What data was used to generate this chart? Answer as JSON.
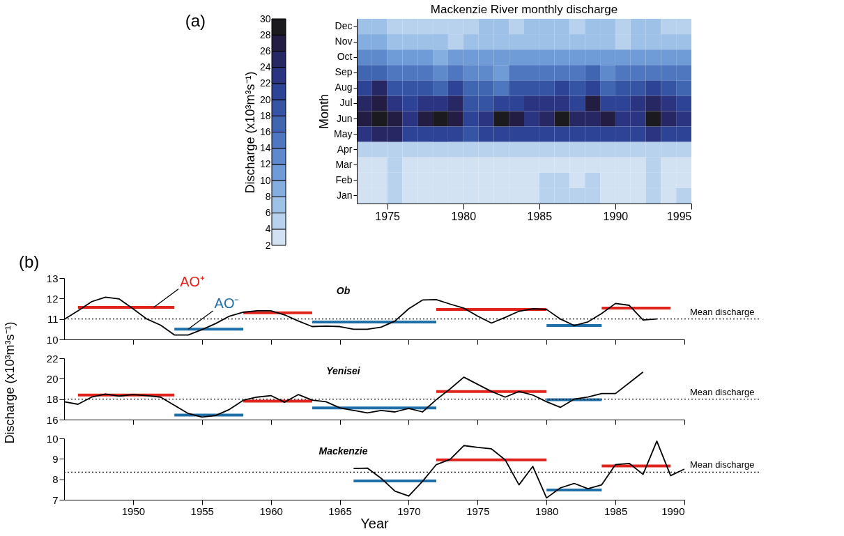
{
  "chart_data": [
    {
      "type": "heatmap",
      "title": "Mackenzie River monthly discharge",
      "ylabel": "Month",
      "clabel": "Discharge (x10³m³s⁻¹)",
      "annotations": [
        "(a)"
      ],
      "x": [
        1973.5,
        1974.5,
        1975.5,
        1976.5,
        1977.5,
        1978.5,
        1979.5,
        1980.5,
        1981.5,
        1982.5,
        1983.5,
        1984.5,
        1985.5,
        1986.5,
        1987.5,
        1988.5,
        1989.5,
        1990.5,
        1991.5,
        1992.5,
        1993.5,
        1994.5
      ],
      "xlim": [
        1973,
        1995
      ],
      "xticks": [
        1975,
        1980,
        1985,
        1990,
        1995
      ],
      "y_categories": [
        "Dec",
        "Nov",
        "Oct",
        "Sep",
        "Aug",
        "Jul",
        "Jun",
        "May",
        "Apr",
        "Mar",
        "Feb",
        "Jan"
      ],
      "cells": [
        [
          7,
          7,
          5,
          5,
          5,
          5,
          5,
          5,
          7,
          7,
          5,
          7,
          7,
          7,
          5,
          7,
          7,
          5,
          7,
          7,
          5,
          5
        ],
        [
          9,
          9,
          7,
          7,
          7,
          7,
          5,
          7,
          7,
          7,
          7,
          7,
          7,
          7,
          7,
          7,
          7,
          5,
          7,
          7,
          7,
          7
        ],
        [
          13,
          13,
          11,
          11,
          11,
          9,
          11,
          11,
          11,
          11,
          11,
          11,
          11,
          11,
          11,
          11,
          11,
          11,
          11,
          11,
          11,
          11
        ],
        [
          17,
          17,
          15,
          15,
          15,
          13,
          15,
          13,
          13,
          11,
          15,
          15,
          15,
          15,
          15,
          17,
          13,
          15,
          15,
          15,
          15,
          15
        ],
        [
          21,
          25,
          19,
          19,
          19,
          17,
          21,
          17,
          17,
          15,
          19,
          19,
          19,
          21,
          19,
          21,
          17,
          19,
          19,
          21,
          19,
          17
        ],
        [
          25,
          27,
          23,
          21,
          23,
          23,
          25,
          19,
          19,
          21,
          21,
          23,
          23,
          23,
          21,
          27,
          21,
          21,
          23,
          25,
          23,
          21
        ],
        [
          27,
          29,
          27,
          23,
          27,
          29,
          27,
          21,
          23,
          29,
          27,
          23,
          25,
          29,
          25,
          25,
          27,
          23,
          23,
          29,
          25,
          23
        ],
        [
          23,
          25,
          25,
          21,
          21,
          21,
          21,
          19,
          21,
          21,
          21,
          21,
          21,
          21,
          21,
          21,
          21,
          21,
          21,
          23,
          21,
          21
        ],
        [
          5,
          5,
          5,
          5,
          5,
          5,
          5,
          5,
          5,
          5,
          5,
          5,
          5,
          5,
          5,
          5,
          5,
          5,
          5,
          5,
          5,
          5
        ],
        [
          3,
          3,
          5,
          3,
          3,
          3,
          3,
          3,
          3,
          3,
          3,
          3,
          3,
          3,
          3,
          3,
          3,
          3,
          3,
          5,
          3,
          3
        ],
        [
          3,
          3,
          5,
          3,
          3,
          3,
          3,
          3,
          3,
          3,
          3,
          3,
          5,
          5,
          3,
          5,
          3,
          3,
          3,
          5,
          3,
          3
        ],
        [
          3,
          3,
          5,
          3,
          3,
          3,
          3,
          3,
          3,
          3,
          3,
          3,
          5,
          5,
          5,
          5,
          3,
          3,
          3,
          5,
          3,
          5
        ]
      ],
      "clim": [
        2,
        30
      ],
      "cticks": [
        2,
        4,
        6,
        8,
        10,
        12,
        14,
        16,
        18,
        20,
        22,
        24,
        26,
        28,
        30
      ],
      "colors": [
        "#d3e2f2",
        "#b8d2ee",
        "#9dc1e7",
        "#84aee0",
        "#6f9bd6",
        "#5e89cb",
        "#4e77bf",
        "#4066b2",
        "#3554a4",
        "#2c4396",
        "#2a3480",
        "#272764",
        "#231d43",
        "#1a1a1f"
      ]
    },
    {
      "type": "line",
      "annotations": [
        "(b)",
        "Ob",
        {
          "text": "AO⁺",
          "x": 1951.5,
          "y": 11.57
        },
        {
          "text": "AO⁻",
          "x": 1954,
          "y": 10.5
        }
      ],
      "xlim": [
        1945,
        1990
      ],
      "xticks": [
        1950,
        1955,
        1960,
        1965,
        1970,
        1975,
        1980,
        1985,
        1990
      ],
      "ylim": [
        10,
        13
      ],
      "yticks": [
        10,
        11,
        12,
        13
      ],
      "tick_labels": "y",
      "grid": false,
      "legend": false,
      "ref_lines": [
        {
          "axis": "y",
          "value": 11.0,
          "label": "Mean discharge",
          "line_style": "dotted",
          "color": "#000000"
        }
      ],
      "series": [
        {
          "x": [
            1946,
            1953
          ],
          "values": [
            11.57,
            11.57
          ],
          "color": "#e0241c"
        },
        {
          "x": [
            1953,
            1958
          ],
          "values": [
            10.5,
            10.5
          ],
          "color": "#1f6fa8"
        },
        {
          "x": [
            1958,
            1963
          ],
          "values": [
            11.3,
            11.3
          ],
          "color": "#e0241c"
        },
        {
          "x": [
            1963,
            1972
          ],
          "values": [
            10.85,
            10.85
          ],
          "color": "#1f6fa8"
        },
        {
          "x": [
            1972,
            1980
          ],
          "values": [
            11.47,
            11.47
          ],
          "color": "#e0241c"
        },
        {
          "x": [
            1980,
            1984
          ],
          "values": [
            10.68,
            10.68
          ],
          "color": "#1f6fa8"
        },
        {
          "x": [
            1984,
            1989
          ],
          "values": [
            11.53,
            11.53
          ],
          "color": "#e0241c"
        },
        {
          "x": [
            1945,
            1946,
            1947,
            1948,
            1949,
            1950,
            1951,
            1952,
            1953,
            1954,
            1955,
            1956,
            1957,
            1958,
            1959,
            1960,
            1961,
            1962,
            1963,
            1964,
            1965,
            1966,
            1967,
            1968,
            1969,
            1970,
            1971,
            1972,
            1973,
            1974,
            1975,
            1976,
            1977,
            1978,
            1979,
            1980,
            1981,
            1982,
            1983,
            1984,
            1985,
            1986,
            1987,
            1988
          ],
          "values": [
            10.98,
            11.4,
            11.85,
            12.07,
            11.98,
            11.5,
            11.0,
            10.7,
            10.22,
            10.22,
            10.48,
            10.78,
            11.14,
            11.33,
            11.4,
            11.4,
            11.2,
            10.9,
            10.63,
            10.65,
            10.63,
            10.5,
            10.5,
            10.6,
            10.9,
            11.5,
            11.93,
            11.95,
            11.73,
            11.53,
            11.14,
            10.8,
            11.08,
            11.38,
            11.5,
            11.47,
            11.0,
            10.68,
            10.86,
            11.27,
            11.76,
            11.67,
            10.95,
            11.0
          ],
          "color": "#000000"
        }
      ]
    },
    {
      "type": "line",
      "ylabel": "Discharge (x10³m³s⁻¹)",
      "annotations": [
        "Yenisei"
      ],
      "xlim": [
        1945,
        1990
      ],
      "xticks": [
        1950,
        1955,
        1960,
        1965,
        1970,
        1975,
        1980,
        1985,
        1990
      ],
      "ylim": [
        16,
        22
      ],
      "yticks": [
        16,
        18,
        20,
        22
      ],
      "tick_labels": "y",
      "grid": false,
      "legend": false,
      "ref_lines": [
        {
          "axis": "y",
          "value": 18.0,
          "label": "Mean discharge",
          "line_style": "dotted",
          "color": "#000000"
        }
      ],
      "series": [
        {
          "x": [
            1946,
            1953
          ],
          "values": [
            18.4,
            18.4
          ],
          "color": "#e0241c"
        },
        {
          "x": [
            1953,
            1958
          ],
          "values": [
            16.45,
            16.45
          ],
          "color": "#1f6fa8"
        },
        {
          "x": [
            1958,
            1963
          ],
          "values": [
            17.8,
            17.8
          ],
          "color": "#e0241c"
        },
        {
          "x": [
            1963,
            1972
          ],
          "values": [
            17.15,
            17.15
          ],
          "color": "#1f6fa8"
        },
        {
          "x": [
            1972,
            1980
          ],
          "values": [
            18.75,
            18.75
          ],
          "color": "#e0241c"
        },
        {
          "x": [
            1980,
            1984
          ],
          "values": [
            17.95,
            17.95
          ],
          "color": "#1f6fa8"
        },
        {
          "x": [
            1945,
            1946,
            1947,
            1948,
            1949,
            1950,
            1951,
            1952,
            1953,
            1954,
            1955,
            1956,
            1957,
            1958,
            1959,
            1960,
            1961,
            1962,
            1963,
            1964,
            1965,
            1966,
            1967,
            1968,
            1969,
            1970,
            1971,
            1972,
            1973,
            1974,
            1975,
            1976,
            1977,
            1978,
            1979,
            1980,
            1981,
            1982,
            1983,
            1984,
            1985,
            1986,
            1987
          ],
          "values": [
            17.75,
            17.5,
            18.2,
            18.5,
            18.3,
            18.45,
            18.35,
            18.2,
            17.4,
            16.6,
            16.25,
            16.4,
            17.0,
            17.9,
            18.2,
            18.35,
            17.7,
            18.45,
            17.9,
            17.75,
            17.15,
            16.9,
            16.65,
            16.9,
            16.75,
            17.1,
            16.75,
            17.95,
            19.0,
            20.15,
            19.45,
            18.75,
            18.2,
            18.75,
            18.4,
            17.75,
            17.2,
            18.0,
            18.2,
            18.55,
            18.55,
            19.6,
            20.65
          ],
          "color": "#000000"
        }
      ]
    },
    {
      "type": "line",
      "xlabel": "Year",
      "annotations": [
        "Mackenzie"
      ],
      "xlim": [
        1945,
        1990
      ],
      "xticks": [
        1950,
        1955,
        1960,
        1965,
        1970,
        1975,
        1980,
        1985,
        1990
      ],
      "ylim": [
        7,
        10
      ],
      "yticks": [
        7,
        8,
        9,
        10
      ],
      "grid": false,
      "legend": false,
      "ref_lines": [
        {
          "axis": "y",
          "value": 8.35,
          "label": "Mean discharge",
          "line_style": "dotted",
          "color": "#000000"
        }
      ],
      "series": [
        {
          "x": [
            1966,
            1972
          ],
          "values": [
            7.92,
            7.92
          ],
          "color": "#1f6fa8"
        },
        {
          "x": [
            1972,
            1980
          ],
          "values": [
            8.95,
            8.95
          ],
          "color": "#e0241c"
        },
        {
          "x": [
            1980,
            1984
          ],
          "values": [
            7.48,
            7.48
          ],
          "color": "#1f6fa8"
        },
        {
          "x": [
            1984,
            1989
          ],
          "values": [
            8.65,
            8.65
          ],
          "color": "#e0241c"
        },
        {
          "x": [
            1966,
            1967,
            1968,
            1969,
            1970,
            1971,
            1972,
            1973,
            1974,
            1975,
            1976,
            1977,
            1978,
            1979,
            1980,
            1981,
            1982,
            1983,
            1984,
            1985,
            1986,
            1987,
            1988,
            1989,
            1990
          ],
          "values": [
            8.53,
            8.55,
            8.05,
            7.42,
            7.18,
            7.9,
            8.72,
            8.97,
            9.65,
            9.56,
            9.49,
            8.95,
            7.73,
            8.63,
            7.09,
            7.58,
            7.8,
            7.54,
            7.73,
            8.72,
            8.78,
            8.24,
            9.87,
            8.18,
            8.5
          ],
          "color": "#000000"
        }
      ]
    }
  ]
}
